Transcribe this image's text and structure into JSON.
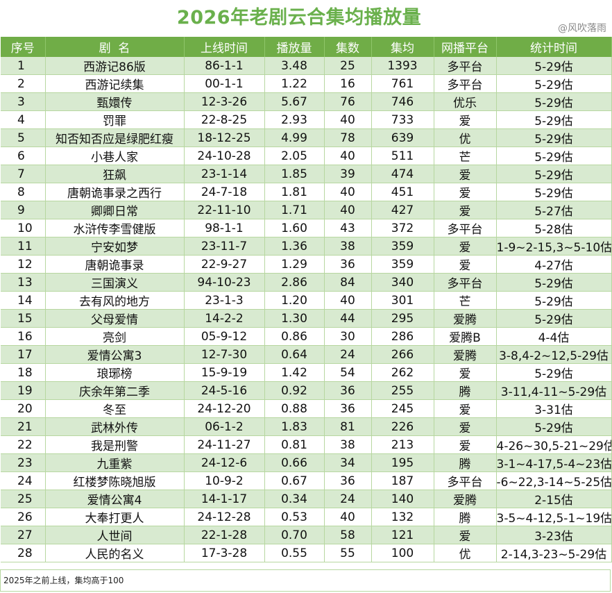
{
  "title": "2026年老剧云合集均播放量",
  "watermark": "@风吹落雨",
  "headers": [
    "序号",
    "剧  名",
    "上线时间",
    "播放量",
    "集数",
    "集均",
    "网播平台",
    "统计时间"
  ],
  "rows": [
    [
      "1",
      "西游记86版",
      "86-1-1",
      "3.48",
      "25",
      "1393",
      "多平台",
      "5-29估"
    ],
    [
      "2",
      "西游记续集",
      "00-1-1",
      "1.22",
      "16",
      "761",
      "多平台",
      "5-29估"
    ],
    [
      "3",
      "甄嬛传",
      "12-3-26",
      "5.67",
      "76",
      "746",
      "优乐",
      "5-29估"
    ],
    [
      "4",
      "罚罪",
      "22-8-25",
      "2.93",
      "40",
      "733",
      "爱",
      "5-29估"
    ],
    [
      "5",
      "知否知否应是绿肥红瘦",
      "18-12-25",
      "4.99",
      "78",
      "639",
      "优",
      "5-29估"
    ],
    [
      "6",
      "小巷人家",
      "24-10-28",
      "2.05",
      "40",
      "511",
      "芒",
      "5-29估"
    ],
    [
      "7",
      "狂飙",
      "23-1-14",
      "1.85",
      "39",
      "474",
      "爱",
      "5-29估"
    ],
    [
      "8",
      "唐朝诡事录之西行",
      "24-7-18",
      "1.81",
      "40",
      "451",
      "爱",
      "5-29估"
    ],
    [
      "9",
      "卿卿日常",
      "22-11-10",
      "1.71",
      "40",
      "427",
      "爱",
      "5-27估"
    ],
    [
      "10",
      "水浒传李雪健版",
      "98-1-1",
      "1.60",
      "43",
      "372",
      "多平台",
      "5-28估"
    ],
    [
      "11",
      "宁安如梦",
      "23-11-7",
      "1.36",
      "38",
      "359",
      "爱",
      "1-9~2-15,3~5-10估"
    ],
    [
      "12",
      "唐朝诡事录",
      "22-9-27",
      "1.29",
      "36",
      "359",
      "爱",
      "4-27估"
    ],
    [
      "13",
      "三国演义",
      "94-10-23",
      "2.86",
      "84",
      "340",
      "多平台",
      "5-29估"
    ],
    [
      "14",
      "去有风的地方",
      "23-1-3",
      "1.20",
      "40",
      "301",
      "芒",
      "5-29估"
    ],
    [
      "15",
      "父母爱情",
      "14-2-2",
      "1.30",
      "44",
      "295",
      "爱腾",
      "5-29估"
    ],
    [
      "16",
      "亮剑",
      "05-9-12",
      "0.86",
      "30",
      "286",
      "爱腾B",
      "4-4估"
    ],
    [
      "17",
      "爱情公寓3",
      "12-7-30",
      "0.64",
      "24",
      "266",
      "爱腾",
      "3-8,4-2~12,5-29估"
    ],
    [
      "18",
      "琅琊榜",
      "15-9-19",
      "1.42",
      "54",
      "262",
      "爱",
      "5-29估"
    ],
    [
      "19",
      "庆余年第二季",
      "24-5-16",
      "0.92",
      "36",
      "255",
      "腾",
      "3-11,4-11~5-29估"
    ],
    [
      "20",
      "冬至",
      "24-12-20",
      "0.88",
      "36",
      "245",
      "爱",
      "3-31估"
    ],
    [
      "21",
      "武林外传",
      "06-1-2",
      "1.83",
      "81",
      "226",
      "爱",
      "5-29估"
    ],
    [
      "22",
      "我是刑警",
      "24-11-27",
      "0.81",
      "38",
      "213",
      "爱",
      "4-26~30,5-21~29估"
    ],
    [
      "23",
      "九重紫",
      "24-12-6",
      "0.66",
      "34",
      "195",
      "腾",
      "3-1~4-17,5-4~23估"
    ],
    [
      "24",
      "红楼梦陈晓旭版",
      "10-9-2",
      "0.67",
      "36",
      "187",
      "多平台",
      "-6~22,3-14~5-25估"
    ],
    [
      "25",
      "爱情公寓4",
      "14-1-17",
      "0.34",
      "24",
      "140",
      "爱腾",
      "2-15估"
    ],
    [
      "26",
      "大奉打更人",
      "24-12-28",
      "0.53",
      "40",
      "132",
      "腾",
      "3-5~4-12,5-1~19估"
    ],
    [
      "27",
      "人世间",
      "22-1-28",
      "0.70",
      "58",
      "121",
      "爱",
      "3-23估"
    ],
    [
      "28",
      "人民的名义",
      "17-3-28",
      "0.55",
      "55",
      "100",
      "优",
      "2-14,3-23~5-29估"
    ]
  ],
  "note": "2025年之前上线，集均高于100"
}
